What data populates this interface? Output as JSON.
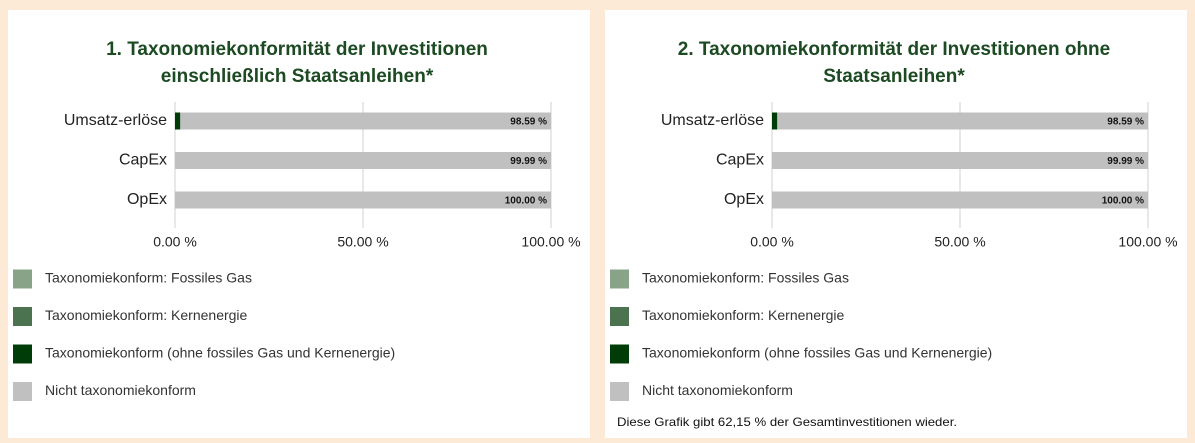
{
  "chart_data": [
    {
      "type": "bar",
      "orientation": "horizontal",
      "stacked": true,
      "title": [
        "1. Taxonomiekonformität der Investitionen",
        "einschließlich Staatsanleihen*"
      ],
      "categories": [
        "Umsatz-erlöse",
        "CapEx",
        "OpEx"
      ],
      "series": [
        {
          "name": "Taxonomiekonform: Fossiles Gas",
          "color": "#88a388",
          "values": [
            0,
            0,
            0
          ]
        },
        {
          "name": "Taxonomiekonform: Kernenergie",
          "color": "#4c7350",
          "values": [
            0,
            0,
            0
          ]
        },
        {
          "name": "Taxonomiekonform (ohne fossiles Gas und Kernenergie)",
          "color": "#003c08",
          "values": [
            1.41,
            0.01,
            0.0
          ],
          "value_labels": [
            "1.41 %",
            "0.01 %",
            "0.00 %"
          ]
        },
        {
          "name": "Nicht taxonomiekonform",
          "color": "#c0c0c0",
          "values": [
            98.59,
            99.99,
            100.0
          ],
          "value_labels": [
            "98.59 %",
            "99.99 %",
            "100.00 %"
          ]
        }
      ],
      "xlim": [
        0,
        100
      ],
      "xticks": [
        {
          "value": 0,
          "label": "0.00 %"
        },
        {
          "value": 50,
          "label": "50.00 %"
        },
        {
          "value": 100,
          "label": "100.00 %"
        }
      ],
      "grid": true
    },
    {
      "type": "bar",
      "orientation": "horizontal",
      "stacked": true,
      "title": [
        "2. Taxonomiekonformität der Investitionen ohne",
        "Staatsanleihen*"
      ],
      "categories": [
        "Umsatz-erlöse",
        "CapEx",
        "OpEx"
      ],
      "series": [
        {
          "name": "Taxonomiekonform: Fossiles Gas",
          "color": "#88a388",
          "values": [
            0,
            0,
            0
          ]
        },
        {
          "name": "Taxonomiekonform: Kernenergie",
          "color": "#4c7350",
          "values": [
            0,
            0,
            0
          ]
        },
        {
          "name": "Taxonomiekonform (ohne fossiles Gas und Kernenergie)",
          "color": "#003c08",
          "values": [
            1.41,
            0.01,
            0.0
          ],
          "value_labels": [
            "1.41 %",
            "0.01 %",
            "0.00 %"
          ]
        },
        {
          "name": "Nicht taxonomiekonform",
          "color": "#c0c0c0",
          "values": [
            98.59,
            99.99,
            100.0
          ],
          "value_labels": [
            "98.59 %",
            "99.99 %",
            "100.00 %"
          ]
        }
      ],
      "xlim": [
        0,
        100
      ],
      "xticks": [
        {
          "value": 0,
          "label": "0.00 %"
        },
        {
          "value": 50,
          "label": "50.00 %"
        },
        {
          "value": 100,
          "label": "100.00 %"
        }
      ],
      "grid": true,
      "note": "Diese Grafik gibt 62,15 % der Gesamtinvestitionen wieder."
    }
  ]
}
